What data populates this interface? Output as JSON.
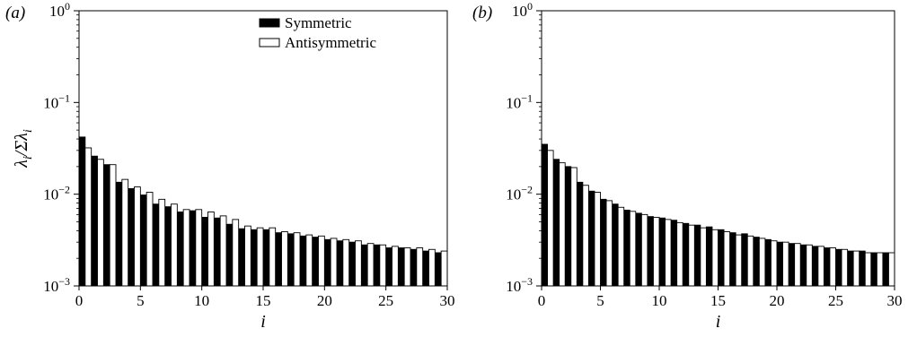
{
  "chart_data": [
    {
      "type": "bar",
      "panel_label": "(a)",
      "title": "",
      "xlabel": "i",
      "ylabel": "λ_i/Σλ_i",
      "yscale": "log",
      "xlim": [
        0,
        30
      ],
      "ylim": [
        0.001,
        1
      ],
      "x_ticks": [
        "0",
        "5",
        "10",
        "15",
        "20",
        "25",
        "30"
      ],
      "y_ticks": [
        {
          "base": "10",
          "exp": "0"
        },
        {
          "base": "10",
          "exp": "−1"
        },
        {
          "base": "10",
          "exp": "−2"
        },
        {
          "base": "10",
          "exp": "−3"
        }
      ],
      "legend": {
        "position": "top-right",
        "entries": [
          "Symmetric",
          "Antisymmetric"
        ]
      },
      "series": [
        {
          "name": "Symmetric",
          "color": "#000000",
          "x": [
            0,
            1,
            2,
            3,
            4,
            5,
            6,
            7,
            8,
            9,
            10,
            11,
            12,
            13,
            14,
            15,
            16,
            17,
            18,
            19,
            20,
            21,
            22,
            23,
            24,
            25,
            26,
            27,
            28,
            29
          ],
          "values": [
            0.042,
            0.026,
            0.021,
            0.0135,
            0.0115,
            0.0098,
            0.0078,
            0.0073,
            0.0064,
            0.0066,
            0.0056,
            0.0055,
            0.0047,
            0.0042,
            0.0041,
            0.0041,
            0.0038,
            0.0037,
            0.0035,
            0.0034,
            0.0032,
            0.0031,
            0.003,
            0.0028,
            0.0028,
            0.0026,
            0.0026,
            0.0025,
            0.0024,
            0.0023
          ]
        },
        {
          "name": "Antisymmetric",
          "color": "#ffffff",
          "x": [
            0,
            1,
            2,
            3,
            4,
            5,
            6,
            7,
            8,
            9,
            10,
            11,
            12,
            13,
            14,
            15,
            16,
            17,
            18,
            19,
            20,
            21,
            22,
            23,
            24,
            25,
            26,
            27,
            28,
            29
          ],
          "values": [
            0.032,
            0.024,
            0.021,
            0.0145,
            0.012,
            0.0105,
            0.0088,
            0.0078,
            0.0068,
            0.0068,
            0.0064,
            0.0058,
            0.0053,
            0.0045,
            0.0043,
            0.0043,
            0.0039,
            0.0038,
            0.0036,
            0.0035,
            0.0033,
            0.0032,
            0.0031,
            0.0029,
            0.0028,
            0.0027,
            0.0026,
            0.0026,
            0.0025,
            0.0024
          ]
        }
      ]
    },
    {
      "type": "bar",
      "panel_label": "(b)",
      "title": "",
      "xlabel": "i",
      "ylabel": "",
      "yscale": "log",
      "xlim": [
        0,
        30
      ],
      "ylim": [
        0.001,
        1
      ],
      "x_ticks": [
        "0",
        "5",
        "10",
        "15",
        "20",
        "25",
        "30"
      ],
      "y_ticks": [
        {
          "base": "10",
          "exp": "0"
        },
        {
          "base": "10",
          "exp": "−1"
        },
        {
          "base": "10",
          "exp": "−2"
        },
        {
          "base": "10",
          "exp": "−3"
        }
      ],
      "series": [
        {
          "name": "Symmetric",
          "color": "#000000",
          "x": [
            0,
            1,
            2,
            3,
            4,
            5,
            6,
            7,
            8,
            9,
            10,
            11,
            12,
            13,
            14,
            15,
            16,
            17,
            18,
            19,
            20,
            21,
            22,
            23,
            24,
            25,
            26,
            27,
            28,
            29
          ],
          "values": [
            0.035,
            0.024,
            0.02,
            0.0135,
            0.0108,
            0.0088,
            0.0078,
            0.0067,
            0.0062,
            0.0057,
            0.0055,
            0.0052,
            0.0048,
            0.0046,
            0.0044,
            0.0041,
            0.0038,
            0.0037,
            0.0034,
            0.0032,
            0.003,
            0.0029,
            0.0028,
            0.0027,
            0.0026,
            0.0025,
            0.0024,
            0.0024,
            0.0023,
            0.0023
          ]
        },
        {
          "name": "Antisymmetric",
          "color": "#ffffff",
          "x": [
            0,
            1,
            2,
            3,
            4,
            5,
            6,
            7,
            8,
            9,
            10,
            11,
            12,
            13,
            14,
            15,
            16,
            17,
            18,
            19,
            20,
            21,
            22,
            23,
            24,
            25,
            26,
            27,
            28,
            29
          ],
          "values": [
            0.03,
            0.022,
            0.0195,
            0.0125,
            0.0105,
            0.0085,
            0.0072,
            0.0065,
            0.006,
            0.0056,
            0.0053,
            0.0049,
            0.0046,
            0.0043,
            0.0041,
            0.0039,
            0.0036,
            0.0035,
            0.0033,
            0.0031,
            0.003,
            0.0029,
            0.0028,
            0.0027,
            0.0026,
            0.0025,
            0.0024,
            0.0023,
            0.0023,
            0.0023
          ]
        }
      ]
    }
  ]
}
